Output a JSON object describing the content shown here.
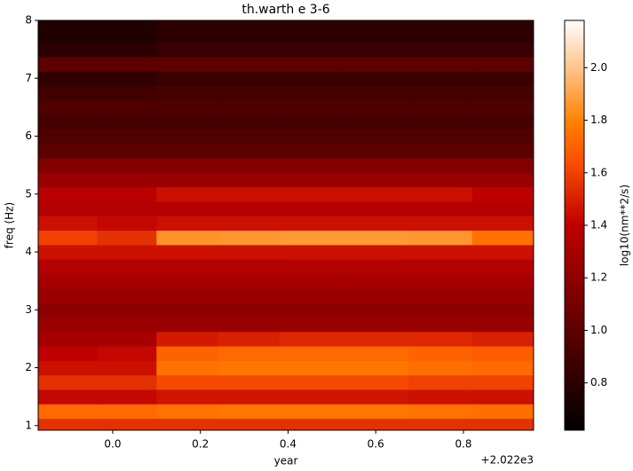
{
  "chart_data": {
    "type": "heatmap",
    "title": "th.warth e 3-6",
    "xlabel": "year",
    "ylabel": "freq (Hz)",
    "x_offset_label": "+2.022e3",
    "colorbar_label": "log10(nm**2/s)",
    "colormap": "gist_heat",
    "x": [
      -0.1,
      0.03,
      0.17,
      0.31,
      0.45,
      0.6,
      0.75,
      0.89
    ],
    "y": [
      1.0,
      1.25,
      1.5,
      1.75,
      2.0,
      2.25,
      2.5,
      2.75,
      3.0,
      3.25,
      3.5,
      3.75,
      4.0,
      4.25,
      4.5,
      4.75,
      5.0,
      5.25,
      5.5,
      5.75,
      6.0,
      6.25,
      6.5,
      6.75,
      7.0,
      7.25,
      7.5,
      7.75
    ],
    "values": [
      [
        1.55,
        1.55,
        1.55,
        1.55,
        1.55,
        1.55,
        1.55,
        1.55
      ],
      [
        1.72,
        1.72,
        1.75,
        1.76,
        1.76,
        1.76,
        1.75,
        1.74
      ],
      [
        1.42,
        1.42,
        1.46,
        1.46,
        1.46,
        1.46,
        1.45,
        1.45
      ],
      [
        1.55,
        1.55,
        1.62,
        1.62,
        1.62,
        1.62,
        1.6,
        1.6
      ],
      [
        1.45,
        1.45,
        1.75,
        1.76,
        1.76,
        1.76,
        1.74,
        1.72
      ],
      [
        1.4,
        1.42,
        1.7,
        1.72,
        1.72,
        1.72,
        1.7,
        1.68
      ],
      [
        1.3,
        1.3,
        1.48,
        1.5,
        1.52,
        1.52,
        1.52,
        1.5
      ],
      [
        1.25,
        1.25,
        1.25,
        1.25,
        1.25,
        1.25,
        1.25,
        1.25
      ],
      [
        1.2,
        1.2,
        1.2,
        1.2,
        1.2,
        1.2,
        1.2,
        1.2
      ],
      [
        1.25,
        1.25,
        1.25,
        1.25,
        1.25,
        1.25,
        1.25,
        1.25
      ],
      [
        1.3,
        1.3,
        1.3,
        1.3,
        1.3,
        1.3,
        1.3,
        1.3
      ],
      [
        1.35,
        1.35,
        1.35,
        1.35,
        1.35,
        1.35,
        1.35,
        1.35
      ],
      [
        1.45,
        1.45,
        1.45,
        1.45,
        1.45,
        1.45,
        1.45,
        1.45
      ],
      [
        1.6,
        1.55,
        1.85,
        1.86,
        1.87,
        1.87,
        1.86,
        1.75
      ],
      [
        1.45,
        1.42,
        1.45,
        1.45,
        1.45,
        1.45,
        1.45,
        1.45
      ],
      [
        1.35,
        1.35,
        1.35,
        1.35,
        1.35,
        1.35,
        1.35,
        1.35
      ],
      [
        1.38,
        1.38,
        1.45,
        1.45,
        1.45,
        1.45,
        1.45,
        1.4
      ],
      [
        1.25,
        1.25,
        1.25,
        1.25,
        1.25,
        1.25,
        1.25,
        1.25
      ],
      [
        1.15,
        1.15,
        1.15,
        1.15,
        1.15,
        1.15,
        1.15,
        1.15
      ],
      [
        1.0,
        1.0,
        1.0,
        1.0,
        1.0,
        1.0,
        1.0,
        1.0
      ],
      [
        0.95,
        0.95,
        0.95,
        0.95,
        0.95,
        0.95,
        0.95,
        0.95
      ],
      [
        0.9,
        0.9,
        0.9,
        0.9,
        0.9,
        0.9,
        0.9,
        0.9
      ],
      [
        0.95,
        0.95,
        0.95,
        0.95,
        0.95,
        0.95,
        0.95,
        0.95
      ],
      [
        0.88,
        0.88,
        0.9,
        0.9,
        0.9,
        0.9,
        0.9,
        0.9
      ],
      [
        0.82,
        0.82,
        0.85,
        0.85,
        0.85,
        0.85,
        0.85,
        0.85
      ],
      [
        1.0,
        1.0,
        1.0,
        1.0,
        1.0,
        1.0,
        1.0,
        1.0
      ],
      [
        0.8,
        0.8,
        0.85,
        0.85,
        0.85,
        0.85,
        0.85,
        0.85
      ],
      [
        0.75,
        0.75,
        0.8,
        0.8,
        0.8,
        0.8,
        0.8,
        0.8
      ]
    ],
    "xlim": [
      -0.17,
      0.96
    ],
    "xticks": [
      {
        "value": 0,
        "label": "0.0"
      },
      0.2,
      0.4,
      0.6,
      0.8
    ],
    "ylim": [
      0.92,
      8
    ],
    "yticks": [
      1,
      2,
      3,
      4,
      5,
      6,
      7,
      8
    ],
    "clim": [
      0.62,
      2.18
    ],
    "cticks": [
      0.8,
      {
        "value": 1,
        "label": "1.0"
      },
      1.2,
      1.4,
      1.6,
      1.8,
      {
        "value": 2,
        "label": "2.0"
      }
    ]
  }
}
